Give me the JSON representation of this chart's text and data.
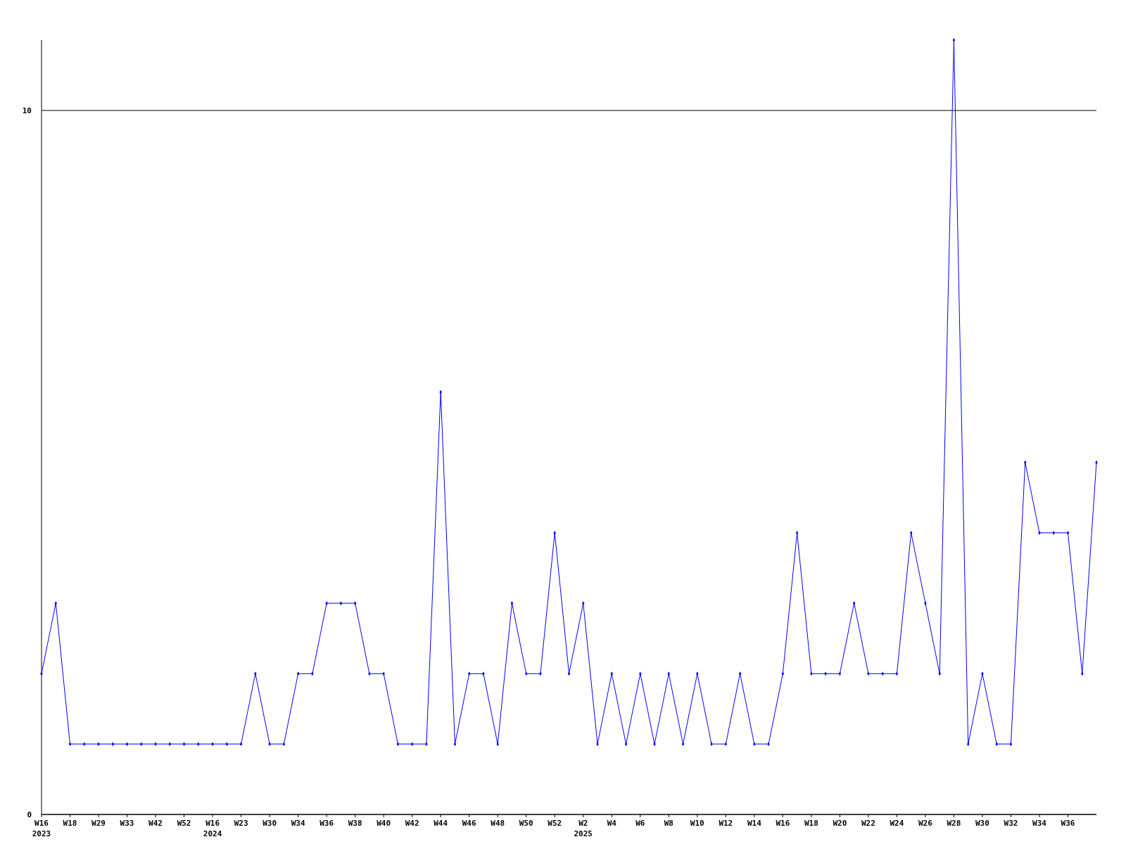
{
  "chart_data": {
    "type": "line",
    "categories": [
      "W16\n2023",
      null,
      "W18",
      null,
      "W29",
      null,
      "W33",
      null,
      "W42",
      null,
      "W52",
      null,
      "W16\n2024",
      null,
      "W23",
      null,
      "W30",
      null,
      "W34",
      null,
      "W36",
      null,
      "W38",
      null,
      "W40",
      null,
      "W42",
      null,
      "W44",
      null,
      "W46",
      null,
      "W48",
      null,
      "W50",
      null,
      "W52",
      null,
      "W2\n2025",
      null,
      "W4",
      null,
      "W6",
      null,
      "W8",
      null,
      "W10",
      null,
      "W12",
      null,
      "W14",
      null,
      "W16",
      null,
      "W18",
      null,
      "W20",
      null,
      "W22",
      null,
      "W24",
      null,
      "W26",
      null,
      "W28",
      null,
      "W30",
      null,
      "W32",
      null,
      "W34",
      null,
      "W36",
      null,
      null
    ],
    "series": [
      {
        "color": "#0000ff",
        "values": [
          2,
          3,
          1,
          1,
          1,
          1,
          1,
          1,
          1,
          1,
          1,
          1,
          1,
          1,
          1,
          2,
          1,
          1,
          2,
          2,
          3,
          3,
          3,
          2,
          2,
          1,
          1,
          1,
          6,
          1,
          2,
          2,
          1,
          3,
          2,
          2,
          4,
          2,
          3,
          1,
          2,
          1,
          2,
          1,
          2,
          1,
          2,
          1,
          1,
          2,
          1,
          1,
          2,
          4,
          2,
          2,
          2,
          3,
          2,
          2,
          2,
          4,
          3,
          2,
          11,
          1,
          2,
          1,
          1,
          5,
          4,
          4,
          4,
          2,
          5
        ]
      }
    ],
    "ylim": [
      0,
      11
    ],
    "yticks": [
      0,
      10
    ],
    "grid": "y",
    "marker": "diamond",
    "line_style": "solid"
  }
}
